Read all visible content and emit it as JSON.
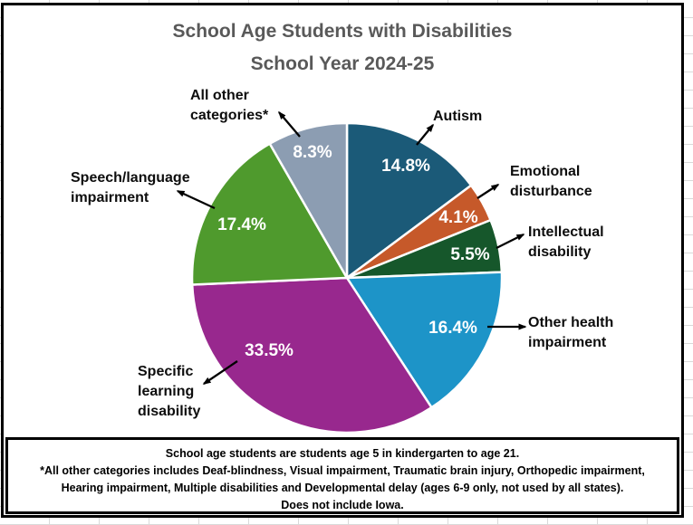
{
  "title": {
    "line1": "School Age Students with Disabilities",
    "line2": "School Year 2024-25"
  },
  "chart_data": {
    "type": "pie",
    "title": "School Age Students with Disabilities",
    "subtitle": "School Year 2024-25",
    "unit": "percent",
    "direction": "clockwise",
    "start_angle_deg": 0,
    "legend": "none",
    "slices": [
      {
        "label": "Autism",
        "value": 14.8,
        "color": "#1B5A78"
      },
      {
        "label": "Emotional disturbance",
        "value": 4.1,
        "color": "#C6592A"
      },
      {
        "label": "Intellectual disability",
        "value": 5.5,
        "color": "#16572B"
      },
      {
        "label": "Other health impairment",
        "value": 16.4,
        "color": "#1D94C8"
      },
      {
        "label": "Specific learning disability",
        "value": 33.5,
        "color": "#98288E"
      },
      {
        "label": "Speech/language impairment",
        "value": 17.4,
        "color": "#4F9A2D"
      },
      {
        "label": "All other categories*",
        "value": 8.3,
        "color": "#8C9DB2"
      }
    ]
  },
  "footnote": {
    "line1": "School age students are students age 5 in kindergarten to age 21.",
    "line2": "*All other categories includes Deaf-blindness, Visual impairment, Traumatic brain injury, Orthopedic impairment,",
    "line3": "Hearing impairment, Multiple disabilities and Developmental delay (ages 6-9 only, not used by all states).",
    "line4": "Does not include Iowa."
  },
  "colors": {
    "title_text": "#595959",
    "category_label_text": "#0D0D0D",
    "percent_label_text": "#FFFFFF",
    "chart_border": "#000000",
    "leader_arrow": "#000000",
    "gridline": "#D9D9D9"
  }
}
